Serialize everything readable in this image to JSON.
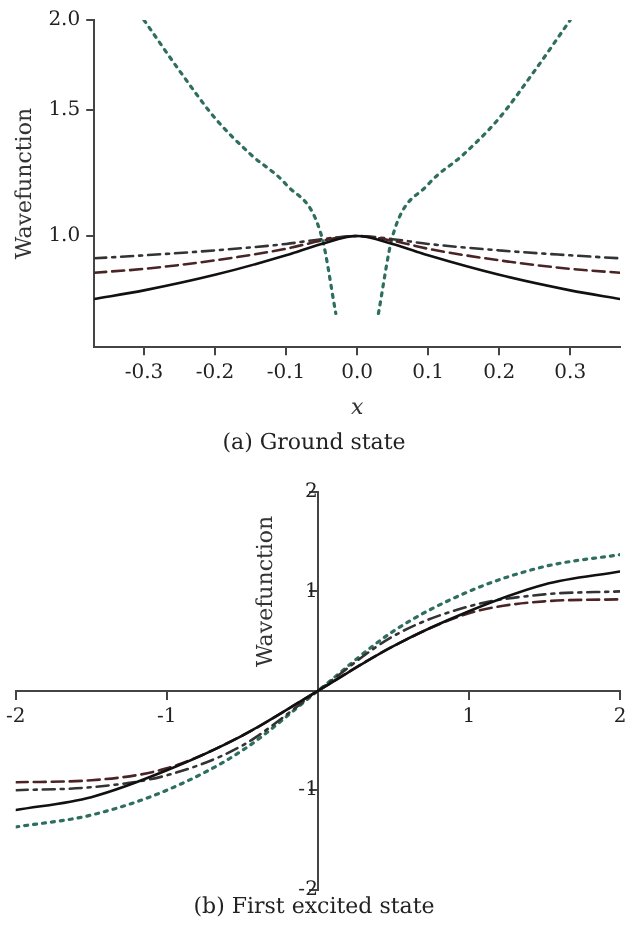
{
  "chart_data": [
    {
      "type": "line",
      "title": "(a) Ground state",
      "xlabel": "x",
      "ylabel": "Wavefunction",
      "log": "y",
      "grid": false,
      "legend": false,
      "xlim": [
        -0.37,
        0.37
      ],
      "xticks": [
        -0.3,
        -0.2,
        -0.1,
        {
          "value": 0,
          "label": "0.0"
        },
        0.1,
        0.2,
        0.3
      ],
      "ylim": [
        0.7,
        2.0
      ],
      "yticks": [
        {
          "value": 1,
          "label": "1.0"
        },
        1.5,
        {
          "value": 2,
          "label": "2.0"
        }
      ],
      "series": [
        {
          "color": "#111111",
          "line_style": "solid",
          "x": [
            -0.37,
            -0.3,
            -0.2,
            -0.1,
            -0.05,
            0,
            0.05,
            0.1,
            0.2,
            0.3,
            0.37
          ],
          "values": [
            0.817,
            0.84,
            0.883,
            0.94,
            0.975,
            1.0,
            0.975,
            0.94,
            0.883,
            0.84,
            0.817
          ]
        },
        {
          "color": "#4a2424",
          "line_style": "dashed",
          "x": [
            -0.37,
            -0.3,
            -0.2,
            -0.1,
            -0.05,
            0,
            0.05,
            0.1,
            0.2,
            0.3,
            0.37
          ],
          "values": [
            0.889,
            0.9,
            0.925,
            0.96,
            0.985,
            1.0,
            0.985,
            0.96,
            0.925,
            0.9,
            0.889
          ]
        },
        {
          "color": "#333333",
          "line_style": "dashdot",
          "x": [
            -0.37,
            -0.3,
            -0.2,
            -0.1,
            -0.05,
            0,
            0.05,
            0.1,
            0.2,
            0.3,
            0.37
          ],
          "values": [
            0.931,
            0.94,
            0.955,
            0.975,
            0.99,
            1.0,
            0.99,
            0.975,
            0.955,
            0.94,
            0.931
          ]
        },
        {
          "color": "#2e6e5e",
          "line_style": "dotted",
          "x": [
            -0.3,
            -0.25,
            -0.2,
            -0.15,
            -0.1,
            -0.05,
            -0.03,
            -0.015,
            0.015,
            0.03,
            0.05,
            0.1,
            0.15,
            0.2,
            0.25,
            0.3
          ],
          "values": [
            2.0,
            1.7,
            1.46,
            1.3,
            1.18,
            1.0,
            0.78,
            null,
            null,
            0.78,
            1.0,
            1.18,
            1.3,
            1.46,
            1.7,
            2.0
          ]
        }
      ]
    },
    {
      "type": "line",
      "title": "(b) First excited state",
      "ylabel": "Wavefunction",
      "grid": false,
      "legend": false,
      "xlim": [
        -2,
        2
      ],
      "xticks": [
        -2,
        -1,
        1,
        2
      ],
      "ylim": [
        -2,
        2
      ],
      "yticks": [
        -2,
        -1,
        1,
        2
      ],
      "series": [
        {
          "color": "#111111",
          "line_style": "solid",
          "x": [
            -2,
            -1.5,
            -1,
            -0.5,
            0,
            0.5,
            1,
            1.5,
            2
          ],
          "values": [
            -1.2,
            -1.07,
            -0.8,
            -0.45,
            0,
            0.45,
            0.8,
            1.07,
            1.2
          ]
        },
        {
          "color": "#4a2424",
          "line_style": "dashed",
          "x": [
            -2,
            -1.5,
            -1,
            -0.5,
            0,
            0.5,
            1,
            1.5,
            2
          ],
          "values": [
            -0.92,
            -0.9,
            -0.78,
            -0.45,
            0,
            0.45,
            0.78,
            0.9,
            0.92
          ]
        },
        {
          "color": "#333333",
          "line_style": "dashdot",
          "x": [
            -2,
            -1.5,
            -1,
            -0.5,
            0,
            0.5,
            1,
            1.5,
            2
          ],
          "values": [
            -1.0,
            -0.97,
            -0.85,
            -0.55,
            0,
            0.55,
            0.85,
            0.97,
            1.0
          ]
        },
        {
          "color": "#2e6e5e",
          "line_style": "dotted",
          "x": [
            -2,
            -1.5,
            -1,
            -0.5,
            0,
            0.5,
            1,
            1.5,
            2
          ],
          "values": [
            -1.37,
            -1.25,
            -1.0,
            -0.6,
            0,
            0.6,
            1.0,
            1.25,
            1.37
          ]
        }
      ]
    }
  ]
}
